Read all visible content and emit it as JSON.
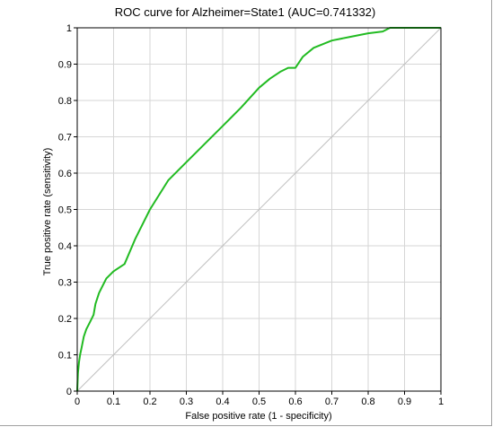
{
  "chart_data": {
    "type": "line",
    "title": "ROC curve for Alzheimer=State1 (AUC=0.741332)",
    "xlabel": "False positive rate (1 - specificity)",
    "ylabel": "True positive rate (sensitivity)",
    "xlim": [
      0,
      1
    ],
    "ylim": [
      0,
      1
    ],
    "x_ticks": [
      "0",
      "0.1",
      "0.2",
      "0.3",
      "0.4",
      "0.5",
      "0.6",
      "0.7",
      "0.8",
      "0.9",
      "1"
    ],
    "y_ticks": [
      "0",
      "0.1",
      "0.2",
      "0.3",
      "0.4",
      "0.5",
      "0.6",
      "0.7",
      "0.8",
      "0.9",
      "1"
    ],
    "grid": true,
    "series": [
      {
        "style": "solid",
        "color": "#22bb22",
        "x": [
          0,
          0.002,
          0.005,
          0.008,
          0.012,
          0.018,
          0.025,
          0.035,
          0.045,
          0.05,
          0.06,
          0.07,
          0.08,
          0.09,
          0.1,
          0.13,
          0.16,
          0.2,
          0.25,
          0.3,
          0.35,
          0.4,
          0.45,
          0.5,
          0.53,
          0.56,
          0.58,
          0.6,
          0.62,
          0.65,
          0.7,
          0.75,
          0.8,
          0.84,
          0.86,
          0.9,
          0.95,
          1
        ],
        "y": [
          0,
          0.05,
          0.08,
          0.1,
          0.12,
          0.15,
          0.17,
          0.19,
          0.21,
          0.24,
          0.27,
          0.29,
          0.31,
          0.32,
          0.33,
          0.35,
          0.42,
          0.5,
          0.58,
          0.63,
          0.68,
          0.73,
          0.78,
          0.835,
          0.86,
          0.88,
          0.89,
          0.89,
          0.92,
          0.945,
          0.965,
          0.975,
          0.985,
          0.99,
          1.0,
          1.0,
          1.0,
          1.0
        ]
      },
      {
        "style": "diagonal",
        "color": "#c0c0c0",
        "x": [
          0,
          1
        ],
        "y": [
          0,
          1
        ]
      }
    ]
  }
}
